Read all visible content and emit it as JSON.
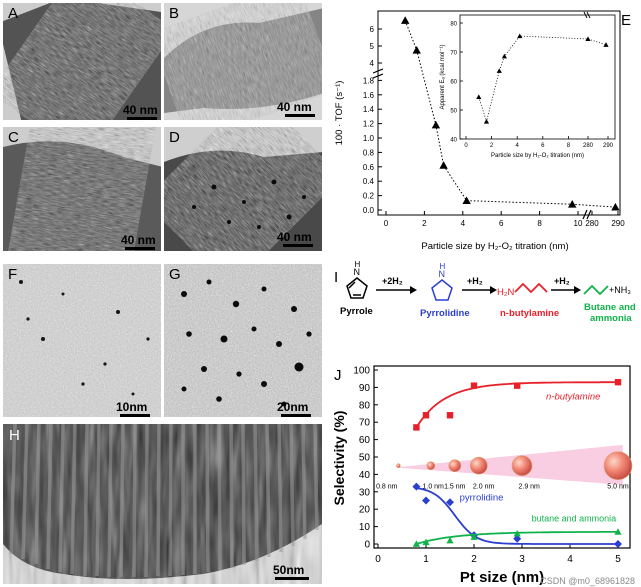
{
  "panels": {
    "A": {
      "label": "A",
      "scale": "40 nm"
    },
    "B": {
      "label": "B",
      "scale": "40 nm"
    },
    "C": {
      "label": "C",
      "scale": "40 nm"
    },
    "D": {
      "label": "D",
      "scale": "40 nm"
    },
    "F": {
      "label": "F",
      "scale": "10nm"
    },
    "G": {
      "label": "G",
      "scale": "20nm"
    },
    "H": {
      "label": "H",
      "scale": "50nm"
    }
  },
  "panel_e": {
    "label": "E",
    "ylabel": "100 · TOF (s⁻¹)",
    "xlabel": "Particle size by H₂-O₂ titration (nm)",
    "inset": {
      "ylabel": "Apparent Eₐ (kcal mol⁻¹)",
      "xlabel": "Particle size by H₂-O₂ titration (nm)"
    }
  },
  "panel_i": {
    "label": "I",
    "pyrrole": "Pyrrole",
    "step1": "+2H₂",
    "pyrrolidine": "Pyrrolidine",
    "step2": "+H₂",
    "nbutylamine": "n-butylamine",
    "h2n": "H₂N",
    "step3": "+H₂",
    "nh3": "+NH₃",
    "butane_line1": "Butane and",
    "butane_line2": "ammonia",
    "nh_label": "H",
    "n_label": "N"
  },
  "panel_j": {
    "label": "J",
    "size_labels": [
      "0.8 nm",
      "1.0 nm",
      "1.5 nm",
      "2.0 nm",
      "2.9 nm",
      "5.0 nm"
    ],
    "watermark": "CSDN @m0_68961828"
  },
  "chart_data": [
    {
      "type": "line",
      "panel": "E",
      "title": "",
      "xlabel": "Particle size by H₂-O₂ titration (nm)",
      "ylabel": "100 · TOF (s⁻¹)",
      "x_ticks": [
        "0",
        "2",
        "4",
        "6",
        "8",
        "10",
        "280",
        "290"
      ],
      "y_ticks_lower": [
        "0.0",
        "0.2",
        "0.4",
        "0.6",
        "0.8",
        "1.0",
        "1.2",
        "1.4",
        "1.6",
        "1.8"
      ],
      "y_ticks_upper": [
        "4",
        "5",
        "6"
      ],
      "axis_break": true,
      "series": [
        {
          "marker": "triangle",
          "x": [
            1.0,
            1.6,
            2.6,
            3.0,
            4.2,
            9.7,
            289
          ],
          "y": [
            6.5,
            4.75,
            1.18,
            0.62,
            0.13,
            0.08,
            0.04
          ]
        }
      ]
    },
    {
      "type": "scatter",
      "panel": "E-inset",
      "xlabel": "Particle size by H₂-O₂ titration (nm)",
      "ylabel": "Apparent Eₐ (kcal mol⁻¹)",
      "x_ticks": [
        "0",
        "2",
        "4",
        "6",
        "8",
        "280",
        "290"
      ],
      "y_ticks": [
        "40",
        "50",
        "60",
        "70",
        "80"
      ],
      "ylim": [
        40,
        80
      ],
      "series": [
        {
          "marker": "triangle",
          "x": [
            1.0,
            1.6,
            2.6,
            3.0,
            4.2,
            280,
            289
          ],
          "y": [
            54.5,
            46,
            63.5,
            68.5,
            75.5,
            74.5,
            72.5
          ]
        }
      ]
    },
    {
      "type": "line",
      "panel": "J",
      "xlabel": "Pt size (nm)",
      "ylabel": "Selectivity (%)",
      "xlim": [
        0,
        5
      ],
      "ylim": [
        0,
        100
      ],
      "x_ticks": [
        "0",
        "1",
        "2",
        "3",
        "4",
        "5"
      ],
      "y_ticks": [
        "0",
        "10",
        "20",
        "30",
        "40",
        "50",
        "60",
        "70",
        "80",
        "90",
        "100"
      ],
      "series": [
        {
          "name": "n-butylamine",
          "color": "#e8202a",
          "marker": "square",
          "x": [
            0.8,
            1.0,
            1.5,
            2.0,
            2.9,
            5.0
          ],
          "y": [
            67,
            74,
            74,
            91,
            91,
            93
          ]
        },
        {
          "name": "pyrrolidine",
          "color": "#2b3fcf",
          "marker": "diamond",
          "x": [
            0.8,
            1.0,
            1.5,
            2.0,
            2.9,
            5.0
          ],
          "y": [
            33,
            25,
            24,
            5,
            3,
            0
          ]
        },
        {
          "name": "butane and ammonia",
          "color": "#10b34a",
          "marker": "triangle",
          "x": [
            0.8,
            1.0,
            1.5,
            2.0,
            2.9,
            5.0
          ],
          "y": [
            0,
            1,
            2,
            4,
            6,
            7
          ]
        }
      ]
    }
  ]
}
